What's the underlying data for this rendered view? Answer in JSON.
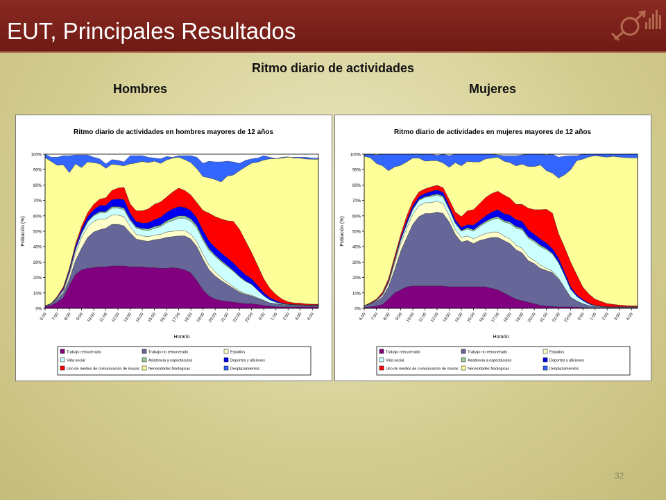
{
  "slide": {
    "title": "EUT, Principales Resultados",
    "subtitle": "Ritmo diario de actividades",
    "left_label": "Hombres",
    "right_label": "Mujeres",
    "page_number": "32"
  },
  "colors": {
    "banner": "#7a1f18",
    "background": "#d6cf94"
  },
  "chart_data": [
    {
      "type": "area",
      "title": "Ritmo diario de actividades en hombres mayores de 12 años",
      "xlabel": "Horario",
      "ylabel": "Población (%)",
      "ylim": [
        0,
        100
      ],
      "yticks": [
        "0%",
        "10%",
        "20%",
        "30%",
        "40%",
        "50%",
        "60%",
        "70%",
        "80%",
        "90%",
        "100%"
      ],
      "x": [
        "6:00",
        "6:30",
        "7:00",
        "7:30",
        "8:00",
        "8:30",
        "9:00",
        "9:30",
        "10:00",
        "10:30",
        "11:00",
        "11:30",
        "12:00",
        "12:30",
        "13:00",
        "13:30",
        "14:00",
        "14:30",
        "15:00",
        "15:30",
        "16:00",
        "16:30",
        "17:00",
        "17:30",
        "18:00",
        "18:30",
        "19:00",
        "19:30",
        "20:00",
        "20:30",
        "21:00",
        "21:30",
        "22:00",
        "22:30",
        "23:00",
        "23:30",
        "0:00",
        "0:30",
        "1:00",
        "1:30",
        "2:00",
        "2:30",
        "3:00",
        "3:30",
        "4:00",
        "4:30"
      ],
      "xticks": [
        "6:00",
        "7:00",
        "8:00",
        "9:00",
        "10:00",
        "11:00",
        "12:00",
        "13:00",
        "14:00",
        "15:00",
        "16:00",
        "17:00",
        "18:00",
        "19:00",
        "20:00",
        "21:00",
        "22:00",
        "23:00",
        "0:00",
        "1:00",
        "2:00",
        "3:00",
        "4:00"
      ],
      "series": [
        {
          "name": "Trabajo remunerado",
          "color": "#800080",
          "values": [
            1,
            2,
            4,
            7,
            15,
            22,
            25,
            26,
            26.5,
            27,
            27,
            27.5,
            27.5,
            27.5,
            27,
            27,
            27,
            26.5,
            26.5,
            26,
            26,
            26.5,
            26,
            25,
            23,
            18,
            12,
            8,
            6,
            5,
            4.5,
            4,
            3.5,
            3,
            3,
            2.5,
            2,
            1.5,
            1,
            1,
            1,
            1,
            1,
            1,
            1,
            1
          ]
        },
        {
          "name": "Trabajo no remunerado",
          "color": "#666699",
          "values": [
            0.5,
            1,
            2,
            3,
            4,
            9,
            14,
            20,
            23,
            24,
            25,
            27,
            27,
            26,
            22,
            18,
            17,
            17,
            18,
            19,
            20,
            20,
            21,
            22,
            22,
            22,
            20,
            17,
            15,
            13,
            11,
            9,
            7,
            6,
            5,
            4,
            3,
            2,
            2,
            1.5,
            1.2,
            1,
            1,
            0.8,
            0.8,
            0.8
          ]
        },
        {
          "name": "Estudios",
          "color": "#ffffcc",
          "values": [
            0,
            0,
            0.5,
            1,
            3,
            5,
            7,
            7,
            7,
            7,
            6,
            6,
            6,
            6,
            4,
            3,
            3,
            3,
            3,
            3,
            3.5,
            3.5,
            3.5,
            3.5,
            3,
            3,
            3,
            3,
            2.5,
            2,
            1.5,
            1,
            0.8,
            0.5,
            0.5,
            0.3,
            0.2,
            0,
            0,
            0,
            0,
            0,
            0,
            0,
            0,
            0
          ]
        },
        {
          "name": "Vida social",
          "color": "#ccffff",
          "values": [
            0,
            0,
            0.3,
            1,
            1.5,
            2,
            2.5,
            3,
            3.5,
            4,
            4,
            4.5,
            4.5,
            4.5,
            4,
            4,
            4,
            4,
            4.5,
            5,
            6,
            7,
            8,
            8,
            8.5,
            9,
            9,
            9.5,
            10,
            10,
            10,
            10,
            9,
            8,
            7,
            5,
            3,
            2,
            1,
            0.5,
            0.3,
            0.3,
            0.2,
            0.2,
            0.2,
            0.2
          ]
        },
        {
          "name": "Asistencia a espectáculos",
          "color": "#99cc99",
          "values": [
            0,
            0,
            0,
            0,
            0,
            0.2,
            0.3,
            0.5,
            0.5,
            0.8,
            0.8,
            1,
            1,
            1,
            0.8,
            0.8,
            0.8,
            1,
            1,
            1,
            1.2,
            1.5,
            1.5,
            1.5,
            1.5,
            1.5,
            1.5,
            1.2,
            1,
            1,
            0.8,
            0.5,
            0.5,
            0.3,
            0.2,
            0,
            0,
            0,
            0,
            0,
            0,
            0,
            0,
            0,
            0,
            0
          ]
        },
        {
          "name": "Deportes y aficiones",
          "color": "#0000ee",
          "values": [
            0.2,
            0.3,
            0.5,
            1,
            1.5,
            2,
            2.5,
            3,
            3.5,
            4,
            4,
            4.5,
            5,
            5.5,
            4,
            3.5,
            3.5,
            4,
            4.5,
            5,
            5.5,
            6,
            6,
            5.5,
            5.5,
            5,
            5,
            5,
            5,
            5,
            5,
            5,
            4.5,
            4,
            3.5,
            3,
            2,
            1.5,
            1,
            0.5,
            0.3,
            0.2,
            0.2,
            0.2,
            0.2,
            0.2
          ]
        },
        {
          "name": "Uso de medios de comunicación de masas",
          "color": "#ff0000",
          "values": [
            0,
            0,
            0.5,
            1,
            1,
            1.5,
            2,
            2.5,
            3.5,
            4,
            5,
            6,
            7,
            8,
            6,
            7,
            8,
            9,
            10,
            10,
            10,
            11,
            12,
            11,
            10,
            10,
            13,
            18,
            20,
            22,
            24,
            27,
            26,
            22,
            17,
            13,
            9,
            6,
            4,
            2.5,
            1.5,
            1,
            1,
            0.7,
            0.5,
            0.5
          ]
        },
        {
          "name": "Necesidades fisiológicas",
          "color": "#ffff99",
          "values": [
            96,
            92,
            85,
            79,
            62,
            52,
            38,
            33,
            27,
            23,
            19,
            17,
            15,
            14,
            26,
            31,
            32,
            30,
            28,
            25,
            24,
            22,
            20,
            20,
            21,
            22,
            22,
            23,
            24,
            24,
            29,
            30,
            38,
            48,
            58,
            67,
            77,
            84,
            88,
            92,
            94,
            94,
            94,
            94,
            94,
            94
          ]
        },
        {
          "name": "Desplazamientos",
          "color": "#3366ff",
          "values": [
            2.3,
            2.7,
            5.2,
            6,
            11,
            5.8,
            8.2,
            4.5,
            3.5,
            3.2,
            2.9,
            3,
            3,
            2.5,
            5.2,
            4.7,
            3.7,
            3.5,
            2,
            3,
            2.3,
            0.5,
            1,
            2.5,
            4.5,
            7.5,
            8.5,
            10.8,
            11.5,
            13,
            9.7,
            8.5,
            4.7,
            4.2,
            2.8,
            2.7,
            2.8,
            1,
            0,
            -0.5,
            -0.3,
            0.5,
            0.6,
            1.1,
            0.8,
            0.8
          ]
        }
      ],
      "legend": "bottom"
    },
    {
      "type": "area",
      "title": "Ritmo diario de actividades en mujeres mayores de 12 años",
      "xlabel": "Horario",
      "ylabel": "Población (%)",
      "ylim": [
        0,
        100
      ],
      "yticks": [
        "0%",
        "10%",
        "20%",
        "30%",
        "40%",
        "50%",
        "60%",
        "70%",
        "80%",
        "90%",
        "100%"
      ],
      "x": [
        "6:00",
        "6:30",
        "7:00",
        "7:30",
        "8:00",
        "8:30",
        "9:00",
        "9:30",
        "10:00",
        "10:30",
        "11:00",
        "11:30",
        "12:00",
        "12:30",
        "13:00",
        "13:30",
        "14:00",
        "14:30",
        "15:00",
        "15:30",
        "16:00",
        "16:30",
        "17:00",
        "17:30",
        "18:00",
        "18:30",
        "19:00",
        "19:30",
        "20:00",
        "20:30",
        "21:00",
        "21:30",
        "22:00",
        "22:30",
        "23:00",
        "23:30",
        "0:00",
        "0:30",
        "1:00",
        "1:30",
        "2:00",
        "2:30",
        "3:00",
        "3:30",
        "4:00",
        "4:30"
      ],
      "xticks": [
        "6:00",
        "7:00",
        "8:00",
        "9:00",
        "10:00",
        "11:00",
        "12:00",
        "13:00",
        "14:00",
        "15:00",
        "16:00",
        "17:00",
        "18:00",
        "19:00",
        "20:00",
        "21:00",
        "22:00",
        "23:00",
        "0:00",
        "1:00",
        "2:00",
        "3:00",
        "4:00"
      ],
      "series": [
        {
          "name": "Trabajo remunerado",
          "color": "#800080",
          "values": [
            0.5,
            1,
            1.5,
            2.5,
            6,
            10,
            12,
            14,
            14.5,
            14.5,
            14.5,
            14.5,
            14.5,
            14.5,
            14,
            14,
            14,
            14,
            14,
            14,
            14,
            13,
            12,
            10,
            8,
            6,
            5,
            4,
            3,
            2,
            1.5,
            1.2,
            1,
            1,
            1,
            0.8,
            0.5,
            0.3,
            0.2,
            0.2,
            0.2,
            0.2,
            0.2,
            0.2,
            0.2,
            0.2
          ]
        },
        {
          "name": "Trabajo no remunerado",
          "color": "#666699",
          "values": [
            1,
            2,
            3,
            5,
            8,
            15,
            25,
            32,
            40,
            45,
            47,
            47,
            48,
            47,
            42,
            34,
            29,
            30,
            28,
            30,
            31,
            33,
            34,
            34,
            34,
            32,
            31,
            27,
            26,
            24,
            23,
            22,
            18,
            12,
            6,
            4,
            2.5,
            1.5,
            1,
            0.8,
            0.5,
            0.5,
            0.5,
            0.5,
            0.5,
            0.5
          ]
        },
        {
          "name": "Estudios",
          "color": "#ffffcc",
          "values": [
            0,
            0,
            0.5,
            1,
            2,
            4,
            5,
            6,
            6.5,
            7,
            7,
            7,
            7,
            6.5,
            4,
            3,
            3,
            3,
            3,
            3,
            3.5,
            3.5,
            3.5,
            3,
            3,
            3,
            3,
            2.5,
            2,
            2,
            1.5,
            1,
            0.5,
            0.3,
            0.2,
            0,
            0,
            0,
            0,
            0,
            0,
            0,
            0,
            0,
            0,
            0
          ]
        },
        {
          "name": "Vida social",
          "color": "#ccffff",
          "values": [
            0,
            0,
            0.2,
            0.5,
            1,
            1.5,
            2,
            2.5,
            3,
            3.5,
            3.5,
            4,
            4,
            4,
            4,
            4,
            4,
            4.5,
            5,
            6,
            7,
            8,
            9,
            9,
            10,
            11,
            12,
            12,
            12,
            12,
            12,
            11,
            10,
            8,
            5,
            3,
            2,
            1,
            0.5,
            0.3,
            0.2,
            0.2,
            0.2,
            0.2,
            0.2,
            0.2
          ]
        },
        {
          "name": "Asistencia a espectáculos",
          "color": "#99cc99",
          "values": [
            0,
            0,
            0,
            0,
            0,
            0.2,
            0.3,
            0.5,
            0.5,
            0.5,
            0.5,
            0.8,
            0.8,
            0.8,
            0.5,
            0.5,
            0.5,
            0.8,
            1,
            1,
            1,
            1,
            1,
            1,
            1,
            1,
            1,
            1,
            1,
            1,
            0.8,
            0.5,
            0.5,
            0.3,
            0.2,
            0,
            0,
            0,
            0,
            0,
            0,
            0,
            0,
            0,
            0,
            0
          ]
        },
        {
          "name": "Deportes y aficiones",
          "color": "#0000ee",
          "values": [
            0.2,
            0.2,
            0.3,
            0.5,
            0.8,
            1,
            1.5,
            2,
            2,
            2,
            2,
            2.5,
            2.5,
            2.5,
            2,
            2,
            2,
            2,
            3,
            3,
            3.5,
            4,
            4.5,
            4.5,
            4.5,
            4.5,
            4.5,
            4.5,
            4,
            4,
            3.5,
            3,
            2.5,
            2,
            1.5,
            1,
            0.8,
            0.5,
            0.3,
            0.2,
            0.2,
            0.2,
            0.2,
            0.2,
            0.2,
            0.2
          ]
        },
        {
          "name": "Uso de medios de comunicación de masas",
          "color": "#ff0000",
          "values": [
            0,
            0.5,
            0.5,
            1,
            1.5,
            2,
            2,
            3,
            3,
            3,
            3,
            3,
            3,
            3,
            4,
            5,
            7,
            9,
            10,
            11,
            12,
            12,
            12,
            12,
            11,
            10,
            11,
            14,
            16,
            19,
            22,
            23,
            16,
            16,
            16,
            13,
            8,
            6,
            4,
            3,
            2,
            1.5,
            1,
            0.7,
            0.5,
            0.5
          ]
        },
        {
          "name": "Necesidades fisiológicas",
          "color": "#ffff99",
          "values": [
            97,
            94,
            88,
            82,
            70,
            58,
            45,
            35,
            28,
            22,
            18,
            17,
            16,
            16,
            21,
            32,
            33,
            32,
            31,
            27,
            25,
            23,
            22,
            22,
            23,
            25,
            26,
            27,
            28,
            29,
            25,
            26,
            36,
            47,
            60,
            74,
            83,
            89,
            93,
            94,
            95,
            96,
            96,
            96,
            96,
            96
          ]
        },
        {
          "name": "Desplazamientos",
          "color": "#3366ff",
          "values": [
            1.3,
            2.3,
            5.5,
            8,
            10.7,
            8.3,
            7.2,
            5,
            2.5,
            2.5,
            4.5,
            4.2,
            3.4,
            5.7,
            7.5,
            5.5,
            7.5,
            4.7,
            5,
            5,
            3,
            2.5,
            1.5,
            3.5,
            4.5,
            6.5,
            6,
            8,
            8,
            7,
            10.2,
            12.3,
            13.5,
            12.1,
            9.1,
            3.2,
            3.7,
            1.7,
            1,
            1.5,
            1.9,
            1.6,
            2.1,
            2.4,
            2.6,
            2.6
          ]
        }
      ],
      "legend": "bottom"
    }
  ]
}
